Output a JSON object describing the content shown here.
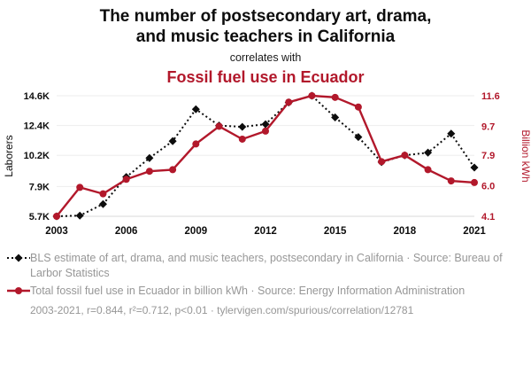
{
  "header": {
    "title_line1": "The number of postsecondary art, drama,",
    "title_line2": "and music teachers in California",
    "connector": "correlates with",
    "subtitle": "Fossil fuel use in Ecuador"
  },
  "colors": {
    "teachers_series": "#0d0d0d",
    "fossil_series": "#b2182b",
    "grid": "#ededed",
    "axis_line": "#d9d9d9",
    "tick_left": "#0d0d0d",
    "tick_right": "#b2182b",
    "legend_text": "#979797"
  },
  "chart_data": {
    "type": "line",
    "x": [
      2003,
      2004,
      2005,
      2006,
      2007,
      2008,
      2009,
      2010,
      2011,
      2012,
      2013,
      2014,
      2015,
      2016,
      2017,
      2018,
      2019,
      2020,
      2021
    ],
    "x_ticks": [
      2003,
      2006,
      2009,
      2012,
      2015,
      2018,
      2021
    ],
    "series": [
      {
        "name": "BLS estimate of art, drama, and music teachers, postsecondary in California",
        "axis": "left",
        "style": "dashed-diamond",
        "values": [
          5700,
          5750,
          6600,
          8600,
          10000,
          11250,
          13600,
          12400,
          12300,
          12500,
          14100,
          14600,
          13000,
          11550,
          9700,
          10200,
          10400,
          11800,
          9300
        ]
      },
      {
        "name": "Total fossil fuel use in Ecuador in billion kWh",
        "axis": "right",
        "style": "solid-circle",
        "values": [
          4.1,
          5.9,
          5.5,
          6.4,
          6.9,
          7.0,
          8.6,
          9.7,
          8.9,
          9.4,
          11.2,
          11.6,
          11.5,
          10.9,
          7.5,
          7.9,
          7.0,
          6.3,
          6.2
        ]
      }
    ],
    "left_axis": {
      "label": "Laborers",
      "ticks": [
        "5.7K",
        "7.9K",
        "10.2K",
        "12.4K",
        "14.6K"
      ],
      "tick_values": [
        5700,
        7900,
        10200,
        12400,
        14600
      ],
      "range": [
        5700,
        14600
      ]
    },
    "right_axis": {
      "label": "Billion kWh",
      "ticks": [
        "4.1",
        "6.0",
        "7.9",
        "9.7",
        "11.6"
      ],
      "tick_values": [
        4.1,
        6.0,
        7.9,
        9.7,
        11.6
      ],
      "range": [
        4.1,
        11.6
      ]
    },
    "legend_position": "bottom",
    "grid": true
  },
  "legend": {
    "items": [
      {
        "label": "BLS estimate of art, drama, and music teachers, postsecondary in California · Source: Bureau of Larbor Statistics"
      },
      {
        "label": "Total fossil fuel use in Ecuador in billion kWh · Source: Energy Information Administration"
      }
    ]
  },
  "footer": {
    "text": "2003-2021, r=0.844, r²=0.712, p<0.01 · tylervigen.com/spurious/correlation/12781"
  }
}
